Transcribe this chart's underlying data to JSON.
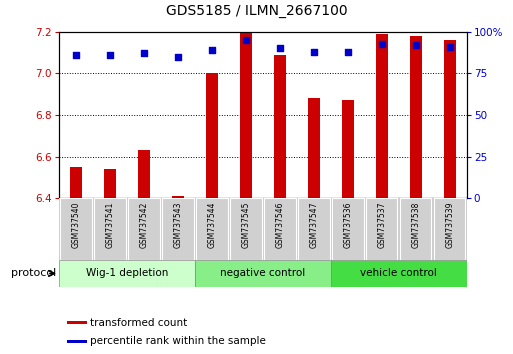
{
  "title": "GDS5185 / ILMN_2667100",
  "samples": [
    "GSM737540",
    "GSM737541",
    "GSM737542",
    "GSM737543",
    "GSM737544",
    "GSM737545",
    "GSM737546",
    "GSM737547",
    "GSM737536",
    "GSM737537",
    "GSM737538",
    "GSM737539"
  ],
  "transformed_counts": [
    6.55,
    6.54,
    6.63,
    6.41,
    7.0,
    7.2,
    7.09,
    6.88,
    6.87,
    7.19,
    7.18,
    7.16
  ],
  "percentile_ranks": [
    86,
    86,
    87,
    85,
    89,
    95,
    90,
    88,
    88,
    93,
    92,
    91
  ],
  "ylim_left": [
    6.4,
    7.2
  ],
  "ylim_right": [
    0,
    100
  ],
  "yticks_left": [
    6.4,
    6.6,
    6.8,
    7.0,
    7.2
  ],
  "yticks_right": [
    0,
    25,
    50,
    75,
    100
  ],
  "bar_color": "#cc0000",
  "dot_color": "#0000cc",
  "groups": [
    {
      "label": "Wig-1 depletion",
      "start": 0,
      "end": 3,
      "color": "#ccffcc"
    },
    {
      "label": "negative control",
      "start": 4,
      "end": 7,
      "color": "#88ee88"
    },
    {
      "label": "vehicle control",
      "start": 8,
      "end": 11,
      "color": "#44dd44"
    }
  ],
  "protocol_label": "protocol",
  "legend_items": [
    {
      "label": "transformed count",
      "color": "#cc0000"
    },
    {
      "label": "percentile rank within the sample",
      "color": "#0000cc"
    }
  ],
  "bar_width": 0.35,
  "base_value": 6.4,
  "plot_bg": "#ffffff",
  "label_bg": "#cccccc",
  "title_fontsize": 10,
  "tick_fontsize": 7.5
}
